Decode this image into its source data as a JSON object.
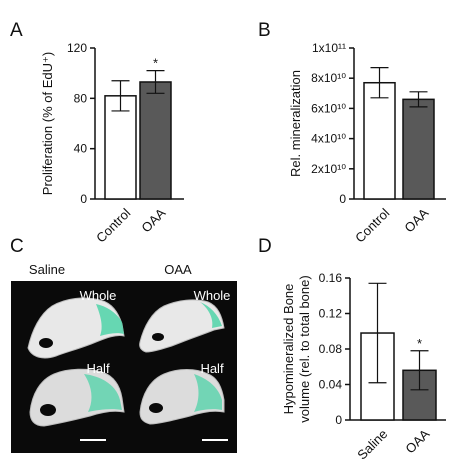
{
  "panels": {
    "A": {
      "letter": "A"
    },
    "B": {
      "letter": "B"
    },
    "C": {
      "letter": "C",
      "col_labels": [
        "Saline",
        "OAA"
      ],
      "row_labels": [
        "Whole",
        "Half"
      ]
    },
    "D": {
      "letter": "D"
    }
  },
  "colors": {
    "control": "#ffffff",
    "treated": "#595959",
    "highlight": "#4fd3a8",
    "image_bg": "#0a0a0a",
    "axis": "#111111"
  },
  "chart_data": [
    {
      "id": "A",
      "type": "bar",
      "categories": [
        "Control",
        "OAA"
      ],
      "values": [
        82,
        93
      ],
      "errors": [
        12,
        9
      ],
      "significance": [
        "",
        "*"
      ],
      "ylabel": "Proliferation (% of EdU⁺)",
      "ylim": [
        0,
        120
      ],
      "yticks": [
        0,
        40,
        80,
        120
      ],
      "ytick_labels": [
        "0",
        "40",
        "80",
        "120"
      ]
    },
    {
      "id": "B",
      "type": "bar",
      "categories": [
        "Control",
        "OAA"
      ],
      "values": [
        77000000000.0,
        66000000000.0
      ],
      "errors": [
        10000000000.0,
        5000000000.0
      ],
      "significance": [
        "",
        ""
      ],
      "ylabel": "Rel. mineralization",
      "ylim": [
        0,
        100000000000.0
      ],
      "yticks": [
        0,
        20000000000.0,
        40000000000.0,
        60000000000.0,
        80000000000.0,
        100000000000.0
      ],
      "ytick_labels": [
        "0",
        "2x10¹⁰",
        "4x10¹⁰",
        "6x10¹⁰",
        "8x10¹⁰",
        "1x10¹¹"
      ]
    },
    {
      "id": "D",
      "type": "bar",
      "categories": [
        "Saline",
        "OAA"
      ],
      "values": [
        0.098,
        0.056
      ],
      "errors": [
        0.056,
        0.022
      ],
      "significance": [
        "",
        "*"
      ],
      "ylabel": [
        "Hypomineralized Bone",
        "volume (rel. to total bone)"
      ],
      "ylim": [
        0,
        0.16
      ],
      "yticks": [
        0,
        0.04,
        0.08,
        0.12,
        0.16
      ],
      "ytick_labels": [
        "0",
        "0.04",
        "0.08",
        "0.12",
        "0.16"
      ]
    }
  ]
}
